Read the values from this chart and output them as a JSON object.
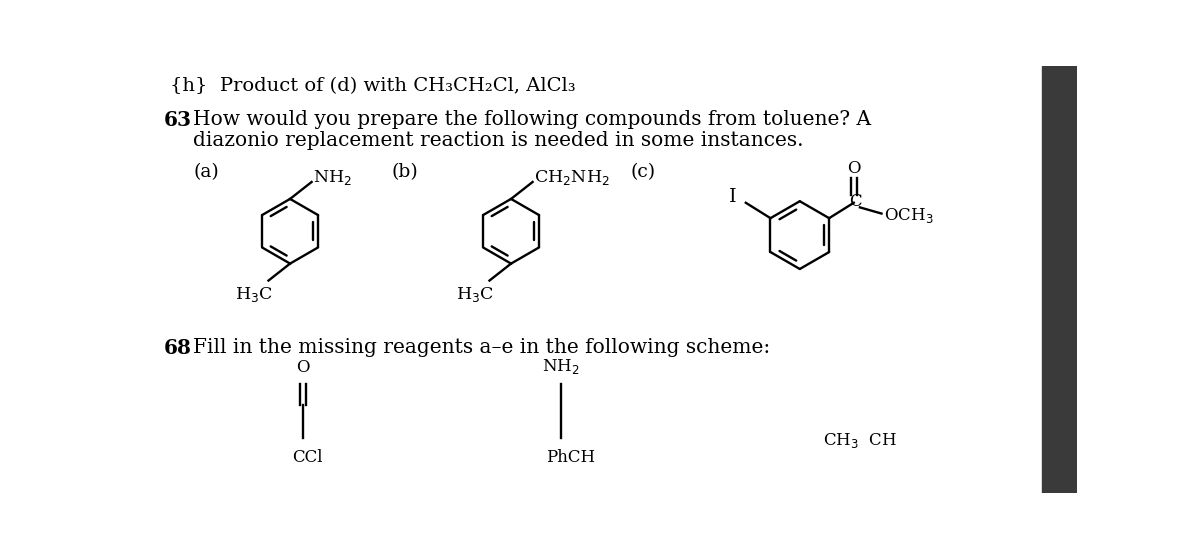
{
  "bg_color": "#ffffff",
  "text_color": "#000000",
  "header": "{h}  Product of (d) with CH₃CH₂Cl, AlCl₃",
  "q63_num": "63",
  "q63_line1": "How would you prepare the following compounds from toluene? A",
  "q63_line2": "diazonio replacement reaction is needed in some instances.",
  "label_a": "(a)",
  "label_b": "(b)",
  "label_c": "(c)",
  "q68_num": "68",
  "q68_line": "Fill in the missing reagents a–e in the following scheme:"
}
